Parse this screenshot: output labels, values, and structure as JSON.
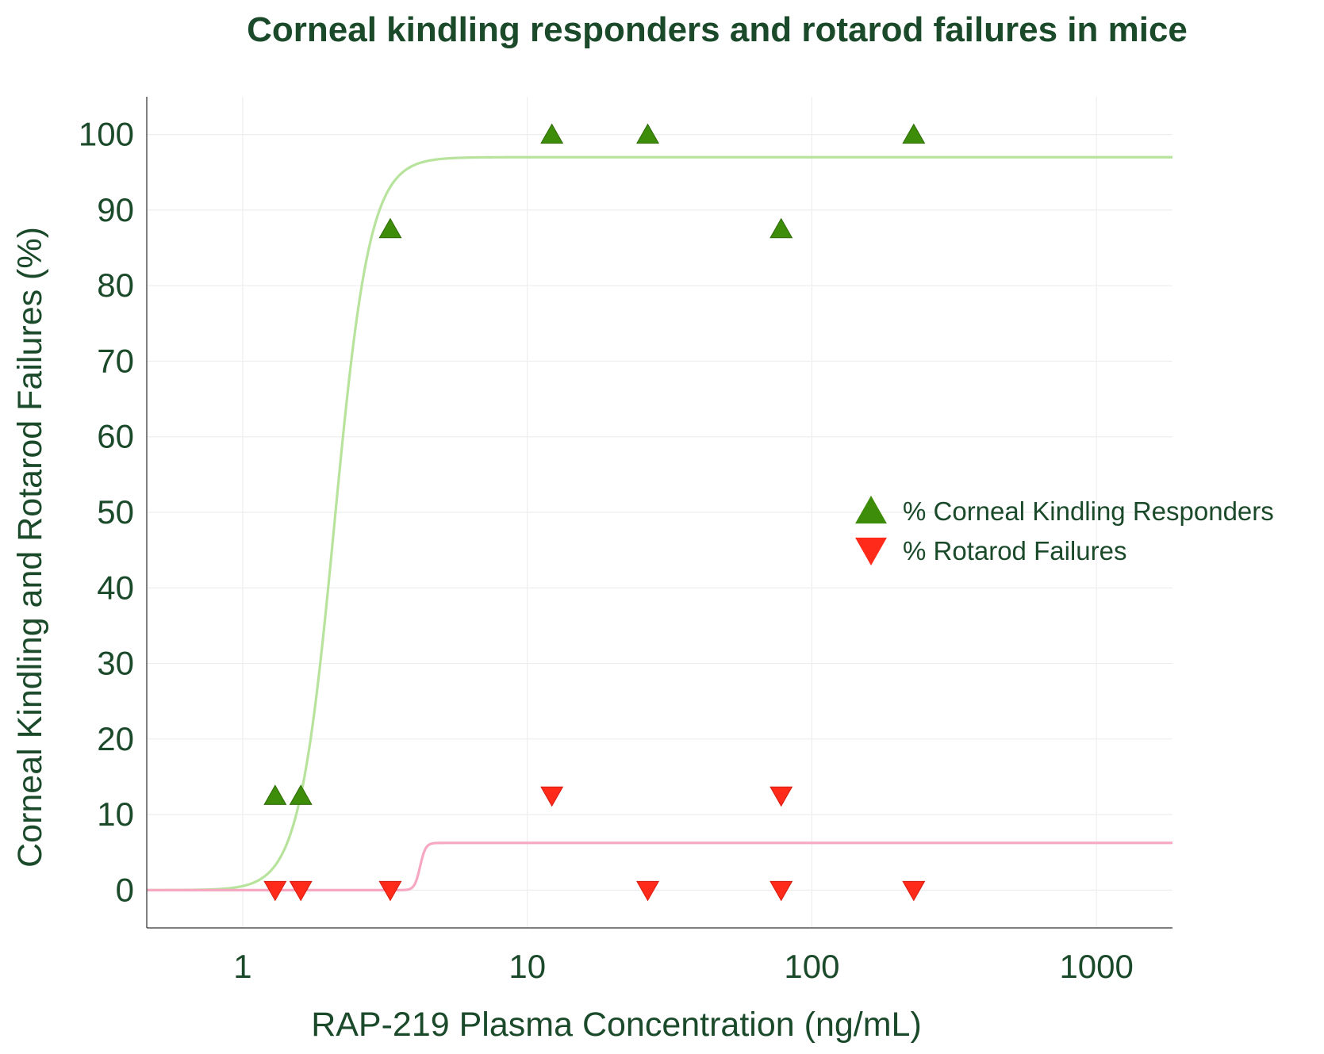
{
  "chart_data": {
    "type": "scatter",
    "title": "Corneal kindling responders and rotarod failures in mice",
    "xlabel": "RAP-219 Plasma Concentration (ng/mL)",
    "ylabel": "Corneal Kindling and Rotarod Failures (%)",
    "x_scale": "log",
    "xlim": [
      0.46,
      1850
    ],
    "ylim": [
      -5,
      105
    ],
    "x_ticks": [
      1,
      10,
      100,
      1000
    ],
    "x_tick_labels": [
      "1",
      "10",
      "100",
      "1000"
    ],
    "y_ticks": [
      0,
      10,
      20,
      30,
      40,
      50,
      60,
      70,
      80,
      90,
      100
    ],
    "y_tick_labels": [
      "0",
      "10",
      "20",
      "30",
      "40",
      "50",
      "60",
      "70",
      "80",
      "90",
      "100"
    ],
    "grid": true,
    "legend_position": "center-right",
    "colors": {
      "text": "#1b4a2b",
      "axis": "#555555",
      "grid": "#eeeeee",
      "responder_marker": "#3d8c0a",
      "responder_curve": "#b7e39c",
      "failure_marker": "#ff2a1a",
      "failure_curve": "#f6a7c1"
    },
    "series": [
      {
        "name": "% Corneal Kindling Responders",
        "marker": "triangle-up",
        "x": [
          1.3,
          1.6,
          3.3,
          12.2,
          26.5,
          78,
          228
        ],
        "y": [
          12.5,
          12.5,
          87.5,
          100,
          100,
          87.5,
          100
        ],
        "fit": {
          "bottom": 0,
          "top": 97,
          "ec50": 2.1,
          "hill": 7
        }
      },
      {
        "name": "% Rotarod Failures",
        "marker": "triangle-down",
        "x": [
          1.3,
          1.6,
          3.3,
          12.2,
          26.5,
          78,
          78,
          228
        ],
        "y": [
          0,
          0,
          0,
          12.5,
          0,
          12.5,
          0,
          0
        ],
        "fit": {
          "bottom": 0,
          "top": 6.25,
          "ec50": 4.2,
          "hill": 45
        }
      }
    ]
  }
}
